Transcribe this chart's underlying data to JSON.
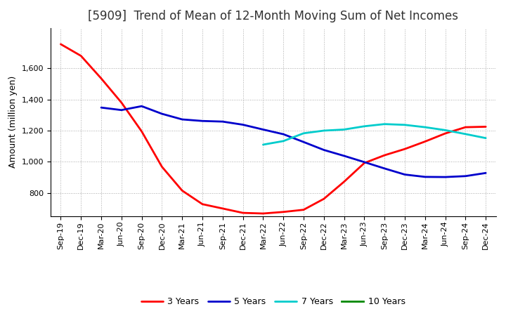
{
  "title": "[5909]  Trend of Mean of 12-Month Moving Sum of Net Incomes",
  "ylabel": "Amount (million yen)",
  "x_labels": [
    "Sep-19",
    "Dec-19",
    "Mar-20",
    "Jun-20",
    "Sep-20",
    "Dec-20",
    "Mar-21",
    "Jun-21",
    "Sep-21",
    "Dec-21",
    "Mar-22",
    "Jun-22",
    "Sep-22",
    "Dec-22",
    "Mar-23",
    "Jun-23",
    "Sep-23",
    "Dec-23",
    "Mar-24",
    "Jun-24",
    "Sep-24",
    "Dec-24"
  ],
  "series": {
    "3 Years": {
      "color": "#ff0000",
      "linewidth": 2.0,
      "data_x": [
        0,
        1,
        2,
        3,
        4,
        5,
        6,
        7,
        8,
        9,
        10,
        11,
        12,
        13,
        14,
        15,
        16,
        17,
        18,
        19,
        20,
        21
      ],
      "data_y": [
        1755,
        1680,
        1535,
        1380,
        1195,
        968,
        815,
        728,
        700,
        672,
        668,
        678,
        692,
        762,
        872,
        992,
        1042,
        1082,
        1130,
        1182,
        1222,
        1225
      ]
    },
    "5 Years": {
      "color": "#0000cc",
      "linewidth": 2.0,
      "data_x": [
        2,
        3,
        4,
        5,
        6,
        7,
        8,
        9,
        10,
        11,
        12,
        13,
        14,
        15,
        16,
        17,
        18,
        19,
        20,
        21
      ],
      "data_y": [
        1348,
        1332,
        1357,
        1308,
        1272,
        1262,
        1258,
        1238,
        1207,
        1177,
        1127,
        1076,
        1038,
        998,
        957,
        918,
        903,
        902,
        908,
        928
      ]
    },
    "7 Years": {
      "color": "#00cccc",
      "linewidth": 2.0,
      "data_x": [
        10,
        11,
        12,
        13,
        14,
        15,
        16,
        17,
        18,
        19,
        20,
        21
      ],
      "data_y": [
        1110,
        1133,
        1183,
        1200,
        1207,
        1228,
        1242,
        1237,
        1222,
        1203,
        1178,
        1152
      ]
    },
    "10 Years": {
      "color": "#008800",
      "linewidth": 2.0,
      "data_x": [],
      "data_y": []
    }
  },
  "ylim": [
    650,
    1860
  ],
  "yticks": [
    800,
    1000,
    1200,
    1400,
    1600
  ],
  "background_color": "#ffffff",
  "grid_color": "#aaaaaa",
  "title_fontsize": 12,
  "ylabel_fontsize": 9,
  "legend_fontsize": 9,
  "tick_fontsize": 8
}
